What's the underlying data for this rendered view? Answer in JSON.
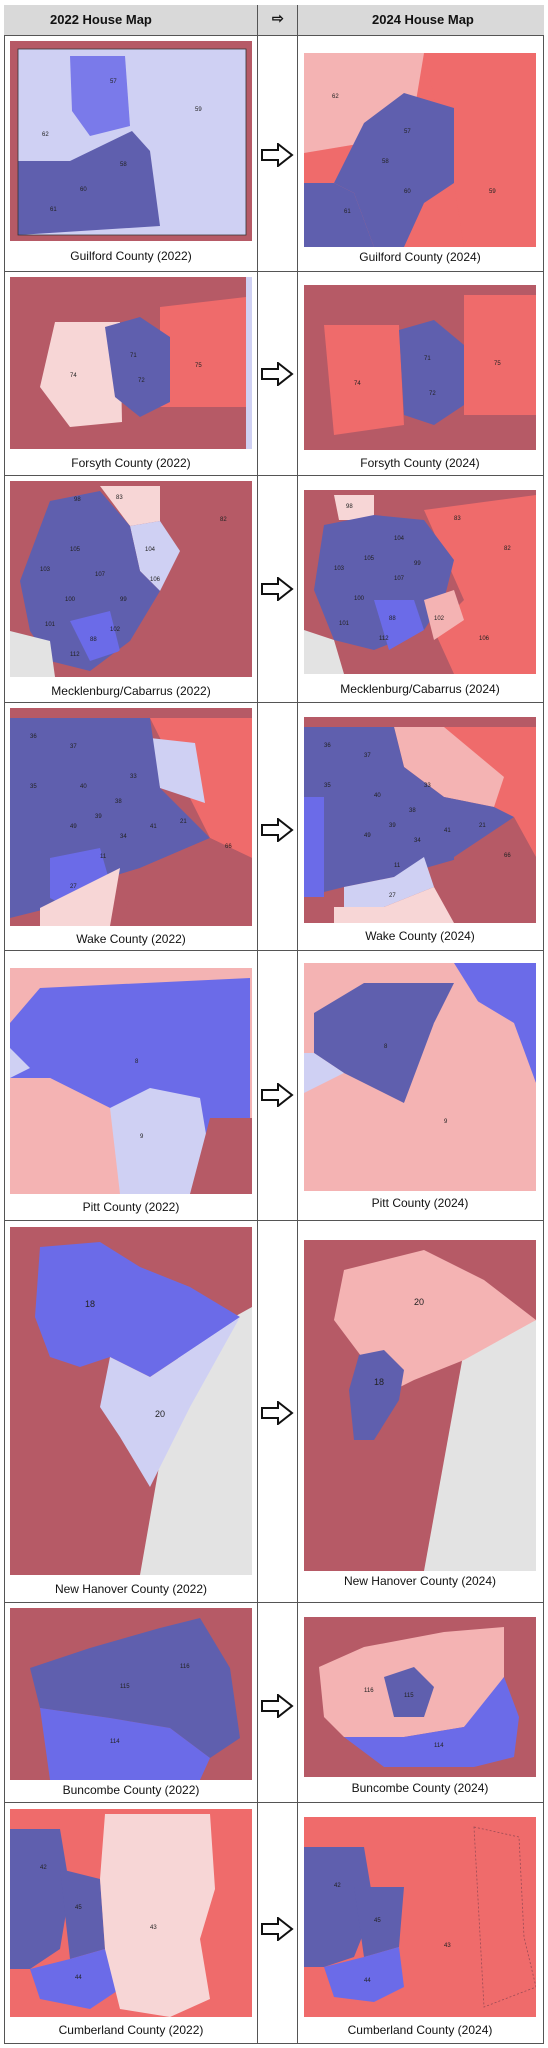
{
  "header": {
    "col_2022": "2022 House Map",
    "col_arrow": "⇨",
    "col_2024": "2024 House Map"
  },
  "colors": {
    "dark_blue": "#5f5fae",
    "blue": "#6b6be8",
    "light_blue": "#cfd0f3",
    "light_pink": "#f4b3b3",
    "pale_pink": "#f7d6d6",
    "red": "#ef6b6b",
    "dark_red": "#b65a66",
    "grey": "#e3e3e3",
    "header_bg": "#d9d9d9"
  },
  "rows": [
    {
      "county": "Guilford",
      "caption_2022": "Guilford County (2022)",
      "caption_2024": "Guilford County (2024)",
      "labels_2022": [
        "57",
        "59",
        "62",
        "58",
        "60",
        "61"
      ],
      "labels_2024": [
        "62",
        "57",
        "58",
        "61",
        "60",
        "59"
      ]
    },
    {
      "county": "Forsyth",
      "caption_2022": "Forsyth County (2022)",
      "caption_2024": "Forsyth County (2024)",
      "labels_2022": [
        "74",
        "71",
        "72",
        "75"
      ],
      "labels_2024": [
        "74",
        "71",
        "72",
        "75"
      ]
    },
    {
      "county": "Mecklenburg/Cabarrus",
      "caption_2022": "Mecklenburg/Cabarrus (2022)",
      "caption_2024": "Mecklenburg/Cabarrus (2024)",
      "labels_2022": [
        "98",
        "83",
        "82",
        "104",
        "103",
        "105",
        "107",
        "99",
        "100",
        "101",
        "88",
        "112",
        "102",
        "106"
      ],
      "labels_2024": [
        "98",
        "83",
        "82",
        "104",
        "103",
        "105",
        "107",
        "99",
        "100",
        "101",
        "88",
        "112",
        "102",
        "106"
      ]
    },
    {
      "county": "Wake",
      "caption_2022": "Wake County (2022)",
      "caption_2024": "Wake County (2024)",
      "labels_2022": [
        "36",
        "37",
        "35",
        "40",
        "38",
        "39",
        "33",
        "34",
        "49",
        "41",
        "11",
        "21",
        "66",
        "27"
      ],
      "labels_2024": [
        "36",
        "37",
        "35",
        "40",
        "38",
        "39",
        "33",
        "34",
        "49",
        "41",
        "11",
        "21",
        "66",
        "27"
      ]
    },
    {
      "county": "Pitt",
      "caption_2022": "Pitt County (2022)",
      "caption_2024": "Pitt County (2024)",
      "labels_2022": [
        "8",
        "9"
      ],
      "labels_2024": [
        "8",
        "9"
      ]
    },
    {
      "county": "New Hanover",
      "caption_2022": "New Hanover County (2022)",
      "caption_2024": "New Hanover County (2024)",
      "labels_2022": [
        "18",
        "20"
      ],
      "labels_2024": [
        "20",
        "18"
      ]
    },
    {
      "county": "Buncombe",
      "caption_2022": "Buncombe County (2022)",
      "caption_2024": "Buncombe County (2024)",
      "labels_2022": [
        "116",
        "115",
        "114"
      ],
      "labels_2024": [
        "116",
        "115",
        "114"
      ]
    },
    {
      "county": "Cumberland",
      "caption_2022": "Cumberland County (2022)",
      "caption_2024": "Cumberland County (2024)",
      "labels_2022": [
        "42",
        "45",
        "43",
        "44"
      ],
      "labels_2024": [
        "42",
        "45",
        "43",
        "44"
      ]
    }
  ]
}
